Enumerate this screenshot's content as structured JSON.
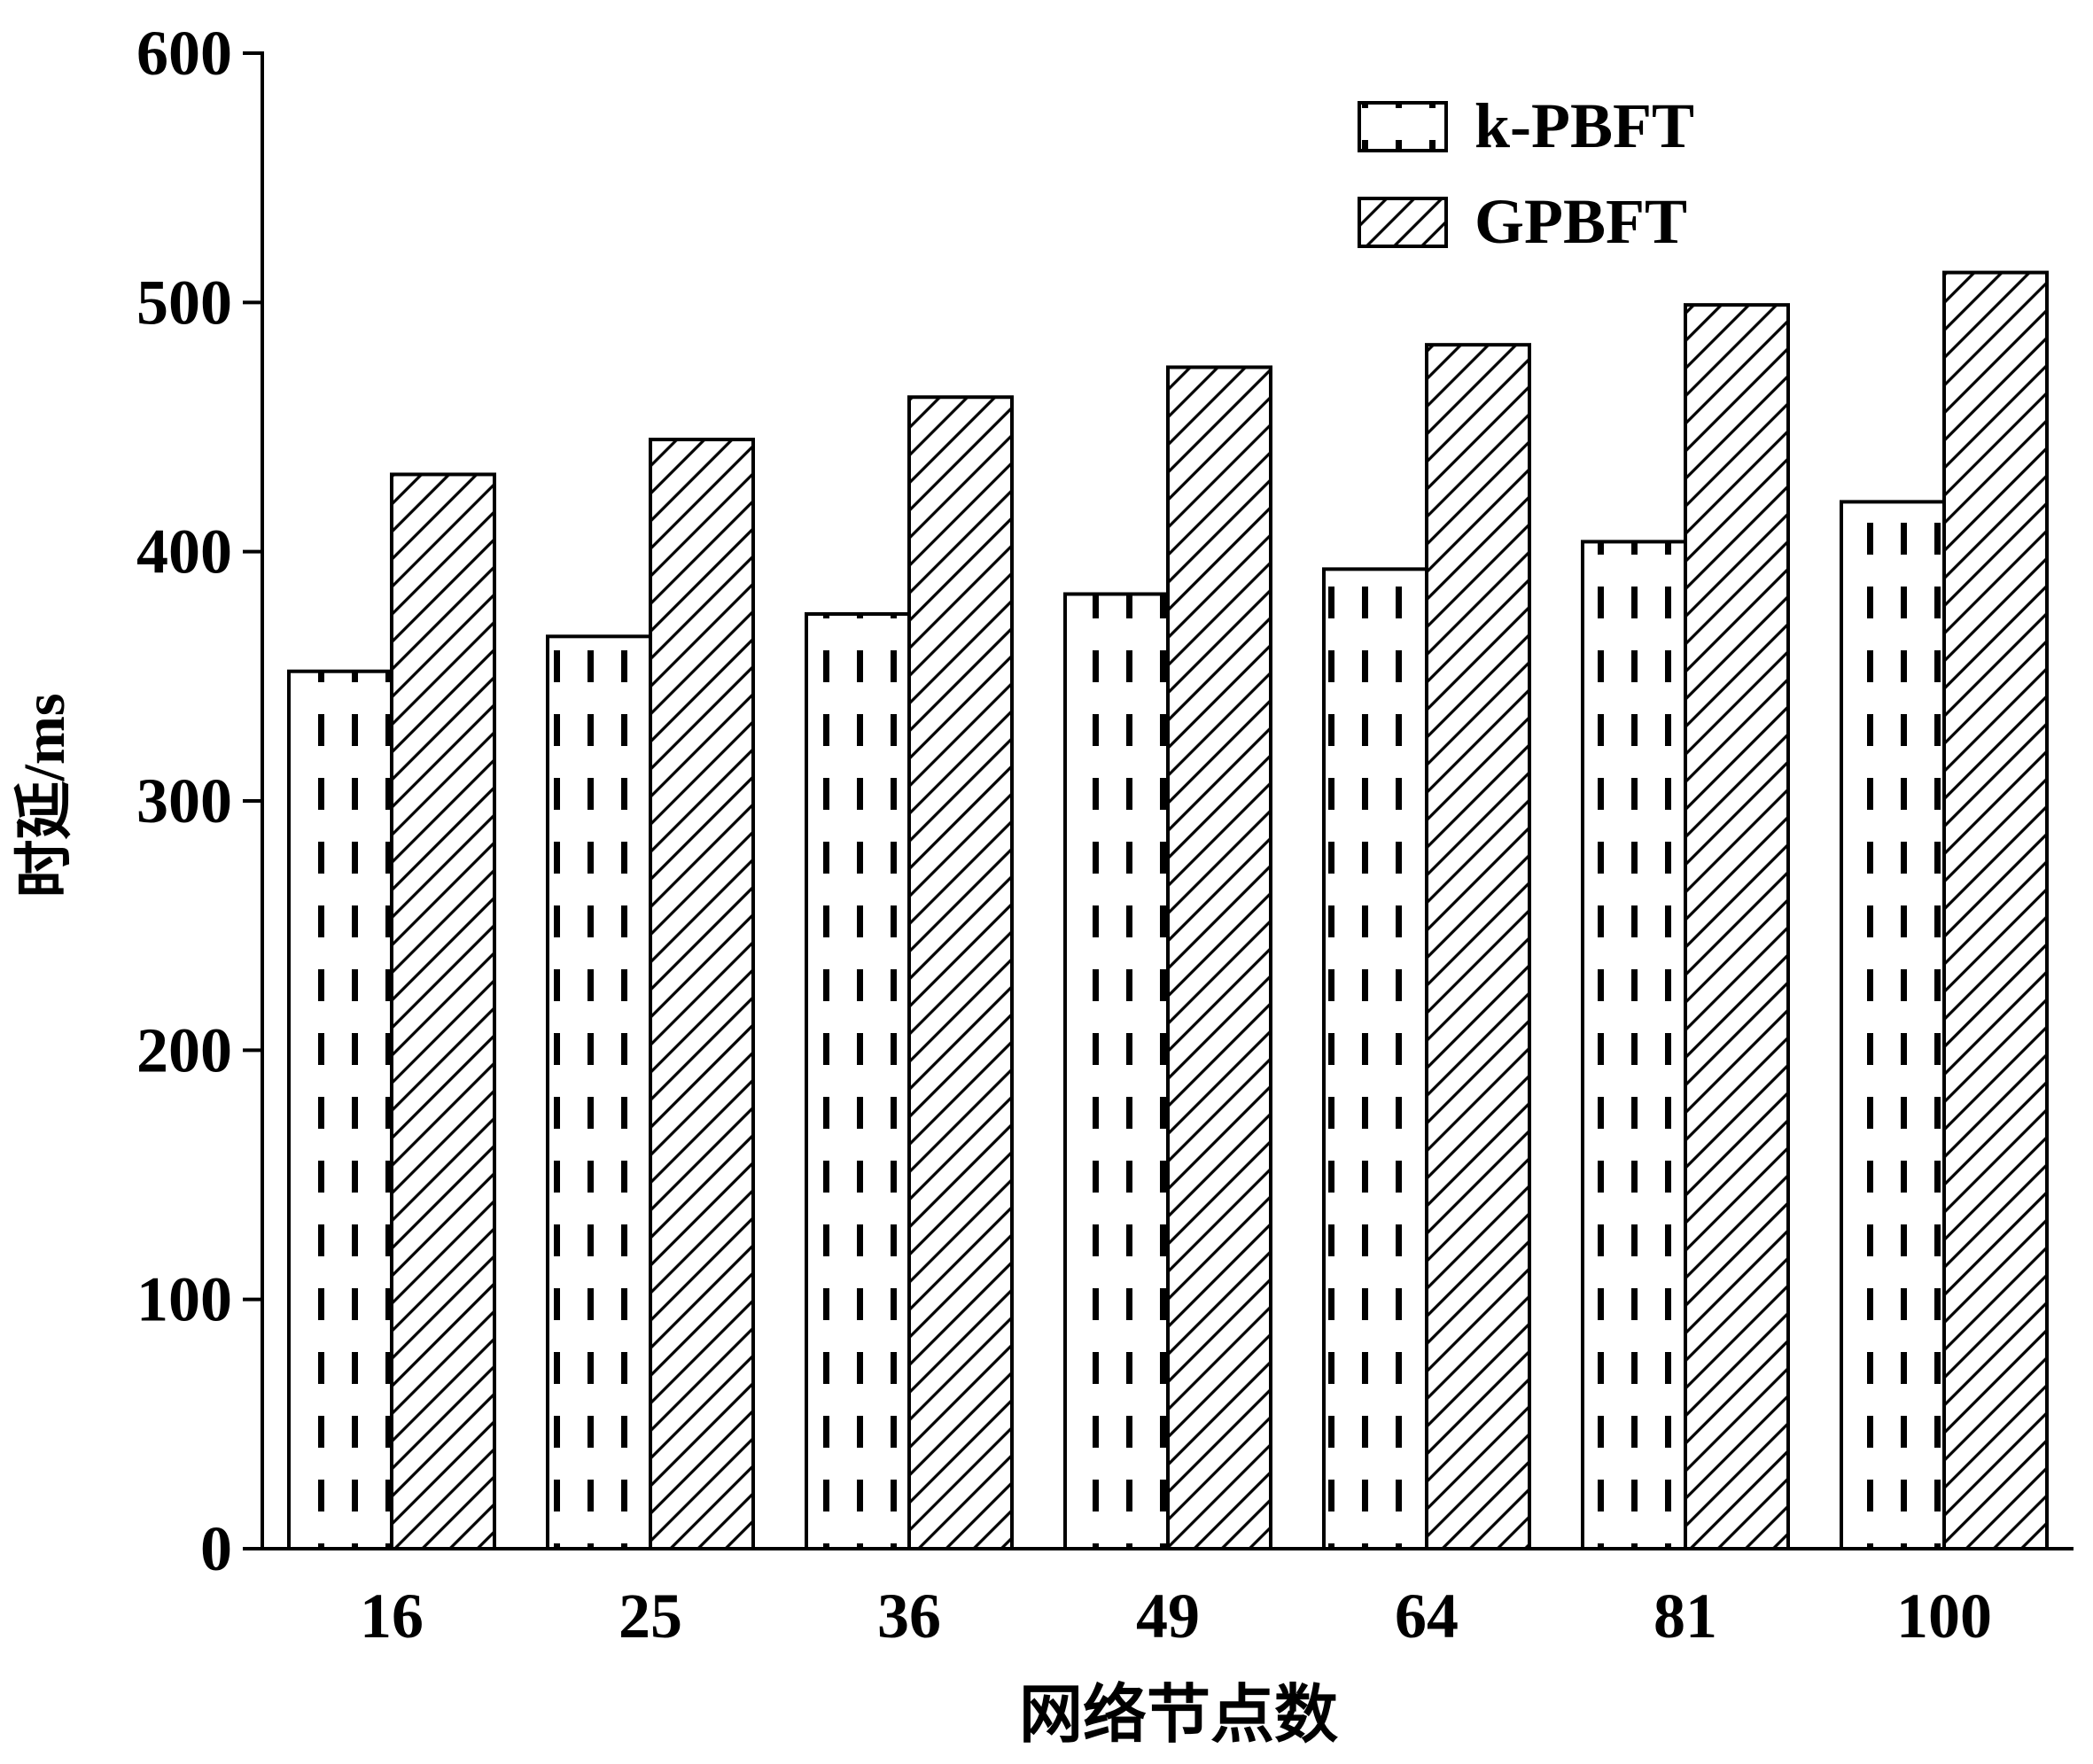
{
  "chart_data": {
    "type": "bar",
    "title": "",
    "xlabel": "网络节点数",
    "ylabel": "时延/ms",
    "categories": [
      "16",
      "25",
      "36",
      "49",
      "64",
      "81",
      "100"
    ],
    "series": [
      {
        "name": "k-PBFT",
        "values": [
          352,
          366,
          375,
          383,
          393,
          404,
          420
        ]
      },
      {
        "name": "GPBFT",
        "values": [
          431,
          445,
          462,
          474,
          483,
          499,
          512
        ]
      }
    ],
    "ylim": [
      0,
      600
    ],
    "yticks": [
      "0",
      "100",
      "200",
      "300",
      "400",
      "500",
      "600"
    ],
    "grid": false,
    "legend_position": "top-right"
  }
}
